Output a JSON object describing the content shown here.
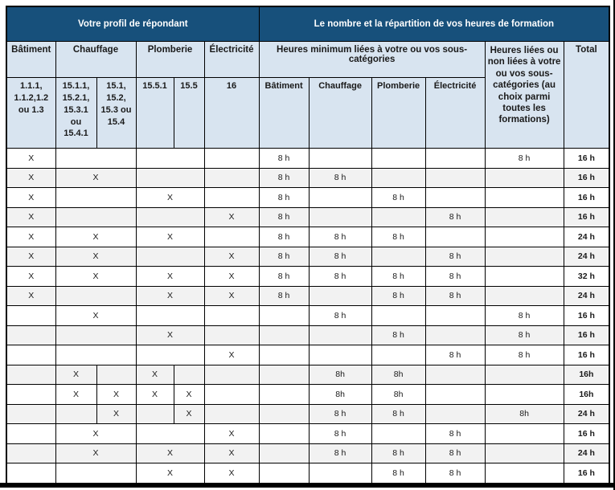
{
  "colors": {
    "dark_header": "#17507B",
    "light_header": "#D8E4F0",
    "row_alt": "#F2F2F2"
  },
  "header": {
    "profil_title": "Votre profil de répondant",
    "heures_title": "Le nombre et la répartition de vos heures de formation",
    "col_batiment": "Bâtiment",
    "col_chauffage": "Chauffage",
    "col_plomberie": "Plomberie",
    "col_electricite": "Électricité",
    "heures_min": "Heures minimum liées à votre ou vos sous-catégories",
    "heures_libres": "Heures liées ou non liées à votre ou vos sous-catégories (au choix parmi toutes les formations)",
    "total": "Total",
    "code_batiment": "1.1.1, 1.1.2,1.2 ou 1.3",
    "code_chauffage_sub": "15.1.1, 15.2.1, 15.3.1 ou 15.4.1",
    "code_chauffage_cat": "15.1, 15.2, 15.3 ou 15.4",
    "code_plomberie_sub": "15.5.1",
    "code_plomberie_cat": "15.5",
    "code_electricite": "16",
    "h_batiment": "Bâtiment",
    "h_chauffage": "Chauffage",
    "h_plomberie": "Plomberie",
    "h_electricite": "Électricité"
  },
  "rows": [
    {
      "cells": [
        {
          "s": 1,
          "t": "X"
        },
        {
          "s": 2,
          "t": ""
        },
        {
          "s": 2,
          "t": ""
        },
        {
          "s": 1,
          "t": ""
        },
        {
          "s": 1,
          "t": "8 h"
        },
        {
          "s": 1,
          "t": ""
        },
        {
          "s": 1,
          "t": ""
        },
        {
          "s": 1,
          "t": ""
        },
        {
          "s": 1,
          "t": "8 h"
        },
        {
          "s": 1,
          "t": "16 h"
        }
      ]
    },
    {
      "cells": [
        {
          "s": 1,
          "t": "X"
        },
        {
          "s": 2,
          "t": "X"
        },
        {
          "s": 2,
          "t": ""
        },
        {
          "s": 1,
          "t": ""
        },
        {
          "s": 1,
          "t": "8 h"
        },
        {
          "s": 1,
          "t": "8 h"
        },
        {
          "s": 1,
          "t": ""
        },
        {
          "s": 1,
          "t": ""
        },
        {
          "s": 1,
          "t": ""
        },
        {
          "s": 1,
          "t": "16 h"
        }
      ]
    },
    {
      "cells": [
        {
          "s": 1,
          "t": "X"
        },
        {
          "s": 2,
          "t": ""
        },
        {
          "s": 2,
          "t": "X"
        },
        {
          "s": 1,
          "t": ""
        },
        {
          "s": 1,
          "t": "8 h"
        },
        {
          "s": 1,
          "t": ""
        },
        {
          "s": 1,
          "t": "8 h"
        },
        {
          "s": 1,
          "t": ""
        },
        {
          "s": 1,
          "t": ""
        },
        {
          "s": 1,
          "t": "16 h"
        }
      ]
    },
    {
      "cells": [
        {
          "s": 1,
          "t": "X"
        },
        {
          "s": 2,
          "t": ""
        },
        {
          "s": 2,
          "t": ""
        },
        {
          "s": 1,
          "t": "X"
        },
        {
          "s": 1,
          "t": "8 h"
        },
        {
          "s": 1,
          "t": ""
        },
        {
          "s": 1,
          "t": ""
        },
        {
          "s": 1,
          "t": "8 h"
        },
        {
          "s": 1,
          "t": ""
        },
        {
          "s": 1,
          "t": "16 h"
        }
      ]
    },
    {
      "cells": [
        {
          "s": 1,
          "t": "X"
        },
        {
          "s": 2,
          "t": "X"
        },
        {
          "s": 2,
          "t": "X"
        },
        {
          "s": 1,
          "t": ""
        },
        {
          "s": 1,
          "t": "8 h"
        },
        {
          "s": 1,
          "t": "8 h"
        },
        {
          "s": 1,
          "t": "8 h"
        },
        {
          "s": 1,
          "t": ""
        },
        {
          "s": 1,
          "t": ""
        },
        {
          "s": 1,
          "t": "24 h"
        }
      ]
    },
    {
      "cells": [
        {
          "s": 1,
          "t": "X"
        },
        {
          "s": 2,
          "t": "X"
        },
        {
          "s": 2,
          "t": ""
        },
        {
          "s": 1,
          "t": "X"
        },
        {
          "s": 1,
          "t": "8 h"
        },
        {
          "s": 1,
          "t": "8 h"
        },
        {
          "s": 1,
          "t": ""
        },
        {
          "s": 1,
          "t": "8 h"
        },
        {
          "s": 1,
          "t": ""
        },
        {
          "s": 1,
          "t": "24 h"
        }
      ]
    },
    {
      "cells": [
        {
          "s": 1,
          "t": "X"
        },
        {
          "s": 2,
          "t": "X"
        },
        {
          "s": 2,
          "t": "X"
        },
        {
          "s": 1,
          "t": "X"
        },
        {
          "s": 1,
          "t": "8 h"
        },
        {
          "s": 1,
          "t": "8 h"
        },
        {
          "s": 1,
          "t": "8 h"
        },
        {
          "s": 1,
          "t": "8 h"
        },
        {
          "s": 1,
          "t": ""
        },
        {
          "s": 1,
          "t": "32 h"
        }
      ]
    },
    {
      "cells": [
        {
          "s": 1,
          "t": "X"
        },
        {
          "s": 2,
          "t": ""
        },
        {
          "s": 2,
          "t": "X"
        },
        {
          "s": 1,
          "t": "X"
        },
        {
          "s": 1,
          "t": "8 h"
        },
        {
          "s": 1,
          "t": ""
        },
        {
          "s": 1,
          "t": "8 h"
        },
        {
          "s": 1,
          "t": "8 h"
        },
        {
          "s": 1,
          "t": ""
        },
        {
          "s": 1,
          "t": "24 h"
        }
      ]
    },
    {
      "cells": [
        {
          "s": 1,
          "t": ""
        },
        {
          "s": 2,
          "t": "X"
        },
        {
          "s": 2,
          "t": ""
        },
        {
          "s": 1,
          "t": ""
        },
        {
          "s": 1,
          "t": ""
        },
        {
          "s": 1,
          "t": "8 h"
        },
        {
          "s": 1,
          "t": ""
        },
        {
          "s": 1,
          "t": ""
        },
        {
          "s": 1,
          "t": "8 h"
        },
        {
          "s": 1,
          "t": "16 h"
        }
      ]
    },
    {
      "cells": [
        {
          "s": 1,
          "t": ""
        },
        {
          "s": 2,
          "t": ""
        },
        {
          "s": 2,
          "t": "X"
        },
        {
          "s": 1,
          "t": ""
        },
        {
          "s": 1,
          "t": ""
        },
        {
          "s": 1,
          "t": ""
        },
        {
          "s": 1,
          "t": "8 h"
        },
        {
          "s": 1,
          "t": ""
        },
        {
          "s": 1,
          "t": "8 h"
        },
        {
          "s": 1,
          "t": "16 h"
        }
      ]
    },
    {
      "cells": [
        {
          "s": 1,
          "t": ""
        },
        {
          "s": 2,
          "t": ""
        },
        {
          "s": 2,
          "t": ""
        },
        {
          "s": 1,
          "t": "X"
        },
        {
          "s": 1,
          "t": ""
        },
        {
          "s": 1,
          "t": ""
        },
        {
          "s": 1,
          "t": ""
        },
        {
          "s": 1,
          "t": "8 h"
        },
        {
          "s": 1,
          "t": "8 h"
        },
        {
          "s": 1,
          "t": "16 h"
        }
      ]
    },
    {
      "cells": [
        {
          "s": 1,
          "t": ""
        },
        {
          "s": 1,
          "t": "X"
        },
        {
          "s": 1,
          "t": ""
        },
        {
          "s": 1,
          "t": "X"
        },
        {
          "s": 1,
          "t": ""
        },
        {
          "s": 1,
          "t": ""
        },
        {
          "s": 1,
          "t": ""
        },
        {
          "s": 1,
          "t": "8h"
        },
        {
          "s": 1,
          "t": "8h"
        },
        {
          "s": 1,
          "t": ""
        },
        {
          "s": 1,
          "t": ""
        },
        {
          "s": 1,
          "t": "16h"
        }
      ]
    },
    {
      "cells": [
        {
          "s": 1,
          "t": ""
        },
        {
          "s": 1,
          "t": "X"
        },
        {
          "s": 1,
          "t": "X"
        },
        {
          "s": 1,
          "t": "X"
        },
        {
          "s": 1,
          "t": "X"
        },
        {
          "s": 1,
          "t": ""
        },
        {
          "s": 1,
          "t": ""
        },
        {
          "s": 1,
          "t": "8h"
        },
        {
          "s": 1,
          "t": "8h"
        },
        {
          "s": 1,
          "t": ""
        },
        {
          "s": 1,
          "t": ""
        },
        {
          "s": 1,
          "t": "16h"
        }
      ]
    },
    {
      "cells": [
        {
          "s": 1,
          "t": ""
        },
        {
          "s": 1,
          "t": ""
        },
        {
          "s": 1,
          "t": "X"
        },
        {
          "s": 1,
          "t": ""
        },
        {
          "s": 1,
          "t": "X"
        },
        {
          "s": 1,
          "t": ""
        },
        {
          "s": 1,
          "t": ""
        },
        {
          "s": 1,
          "t": "8 h"
        },
        {
          "s": 1,
          "t": "8 h"
        },
        {
          "s": 1,
          "t": ""
        },
        {
          "s": 1,
          "t": "8h"
        },
        {
          "s": 1,
          "t": "24 h"
        }
      ]
    },
    {
      "cells": [
        {
          "s": 1,
          "t": ""
        },
        {
          "s": 2,
          "t": "X"
        },
        {
          "s": 2,
          "t": ""
        },
        {
          "s": 1,
          "t": "X"
        },
        {
          "s": 1,
          "t": ""
        },
        {
          "s": 1,
          "t": "8 h"
        },
        {
          "s": 1,
          "t": ""
        },
        {
          "s": 1,
          "t": "8 h"
        },
        {
          "s": 1,
          "t": ""
        },
        {
          "s": 1,
          "t": "16 h"
        }
      ]
    },
    {
      "cells": [
        {
          "s": 1,
          "t": ""
        },
        {
          "s": 2,
          "t": "X"
        },
        {
          "s": 2,
          "t": "X"
        },
        {
          "s": 1,
          "t": "X"
        },
        {
          "s": 1,
          "t": ""
        },
        {
          "s": 1,
          "t": "8 h"
        },
        {
          "s": 1,
          "t": "8 h"
        },
        {
          "s": 1,
          "t": "8 h"
        },
        {
          "s": 1,
          "t": ""
        },
        {
          "s": 1,
          "t": "24 h"
        }
      ]
    },
    {
      "cells": [
        {
          "s": 1,
          "t": ""
        },
        {
          "s": 2,
          "t": ""
        },
        {
          "s": 2,
          "t": "X"
        },
        {
          "s": 1,
          "t": "X"
        },
        {
          "s": 1,
          "t": ""
        },
        {
          "s": 1,
          "t": ""
        },
        {
          "s": 1,
          "t": "8 h"
        },
        {
          "s": 1,
          "t": "8 h"
        },
        {
          "s": 1,
          "t": ""
        },
        {
          "s": 1,
          "t": "16 h"
        }
      ]
    }
  ]
}
